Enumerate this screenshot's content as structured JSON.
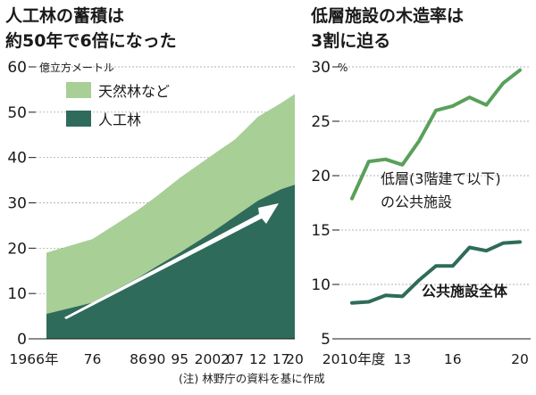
{
  "colors": {
    "natural_forest": "#a8cf96",
    "planted_forest": "#2f6b5a",
    "line_lowrise": "#5aa05a",
    "line_all": "#2f6b5a",
    "text": "#1a1a1a",
    "grid": "#9a9a9a",
    "arrow": "#ffffff"
  },
  "footnote": "(注) 林野庁の資料を基に作成",
  "chart_data": [
    {
      "type": "area",
      "title": "人工林の蓄積は約50年で6倍になった",
      "unit_label": "億立方メートル",
      "ylim": [
        0,
        60
      ],
      "yticks": [
        "0",
        "10",
        "20",
        "30",
        "40",
        "50",
        "60"
      ],
      "x_labels": [
        "1966年",
        "76",
        "86",
        "90",
        "95",
        "2002",
        "07",
        "12",
        "17",
        "20"
      ],
      "x": [
        1966,
        1976,
        1986,
        1990,
        1995,
        2002,
        2007,
        2012,
        2017,
        2020
      ],
      "stacked": true,
      "legend_position": "upper-left",
      "series": [
        {
          "name": "人工林",
          "values": [
            5.5,
            8.0,
            13.5,
            16.0,
            19.0,
            23.5,
            27.0,
            30.5,
            33.0,
            34.0
          ]
        },
        {
          "name": "天然林など",
          "values": [
            13.5,
            14.0,
            15.0,
            15.5,
            16.5,
            17.0,
            17.0,
            18.5,
            19.0,
            20.0
          ]
        }
      ],
      "annotations": [
        "trend arrow"
      ],
      "grid": true
    },
    {
      "type": "line",
      "title": "低層施設の木造率は3割に迫る",
      "unit_label": "%",
      "ylim": [
        5,
        30
      ],
      "yticks": [
        "5",
        "10",
        "15",
        "20",
        "25",
        "30"
      ],
      "x_labels": [
        "2010年度",
        "13",
        "16",
        "20"
      ],
      "x": [
        2010,
        2011,
        2012,
        2013,
        2014,
        2015,
        2016,
        2017,
        2018,
        2019,
        2020
      ],
      "series": [
        {
          "name": "低層(3階建て以下)の公共施設",
          "label_lines": [
            "低層(3階建て以下)",
            "の公共施設"
          ],
          "values": [
            17.9,
            21.3,
            21.5,
            21.0,
            23.2,
            26.0,
            26.4,
            27.2,
            26.5,
            28.5,
            29.7
          ]
        },
        {
          "name": "公共施設全体",
          "values": [
            8.3,
            8.4,
            9.0,
            8.9,
            10.4,
            11.7,
            11.7,
            13.4,
            13.1,
            13.8,
            13.9
          ]
        }
      ],
      "grid": true
    }
  ]
}
